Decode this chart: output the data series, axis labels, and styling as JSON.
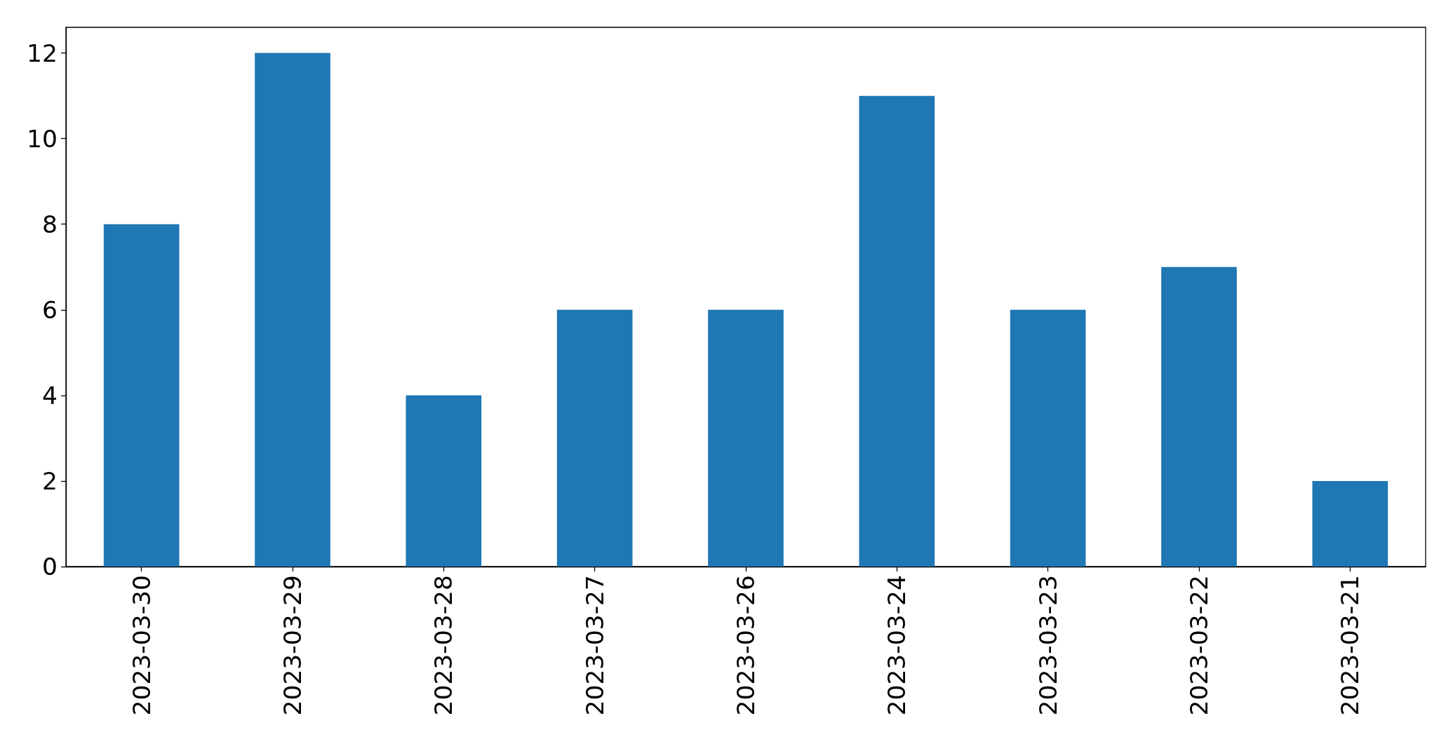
{
  "chart_data": {
    "type": "bar",
    "categories": [
      "2023-03-30",
      "2023-03-29",
      "2023-03-28",
      "2023-03-27",
      "2023-03-26",
      "2023-03-24",
      "2023-03-23",
      "2023-03-22",
      "2023-03-21"
    ],
    "values": [
      8,
      12,
      4,
      6,
      6,
      11,
      6,
      7,
      2
    ],
    "color": "#1f77b4",
    "ylim": [
      0,
      12.6
    ],
    "yticks": [
      0,
      2,
      4,
      6,
      8,
      10,
      12
    ]
  }
}
